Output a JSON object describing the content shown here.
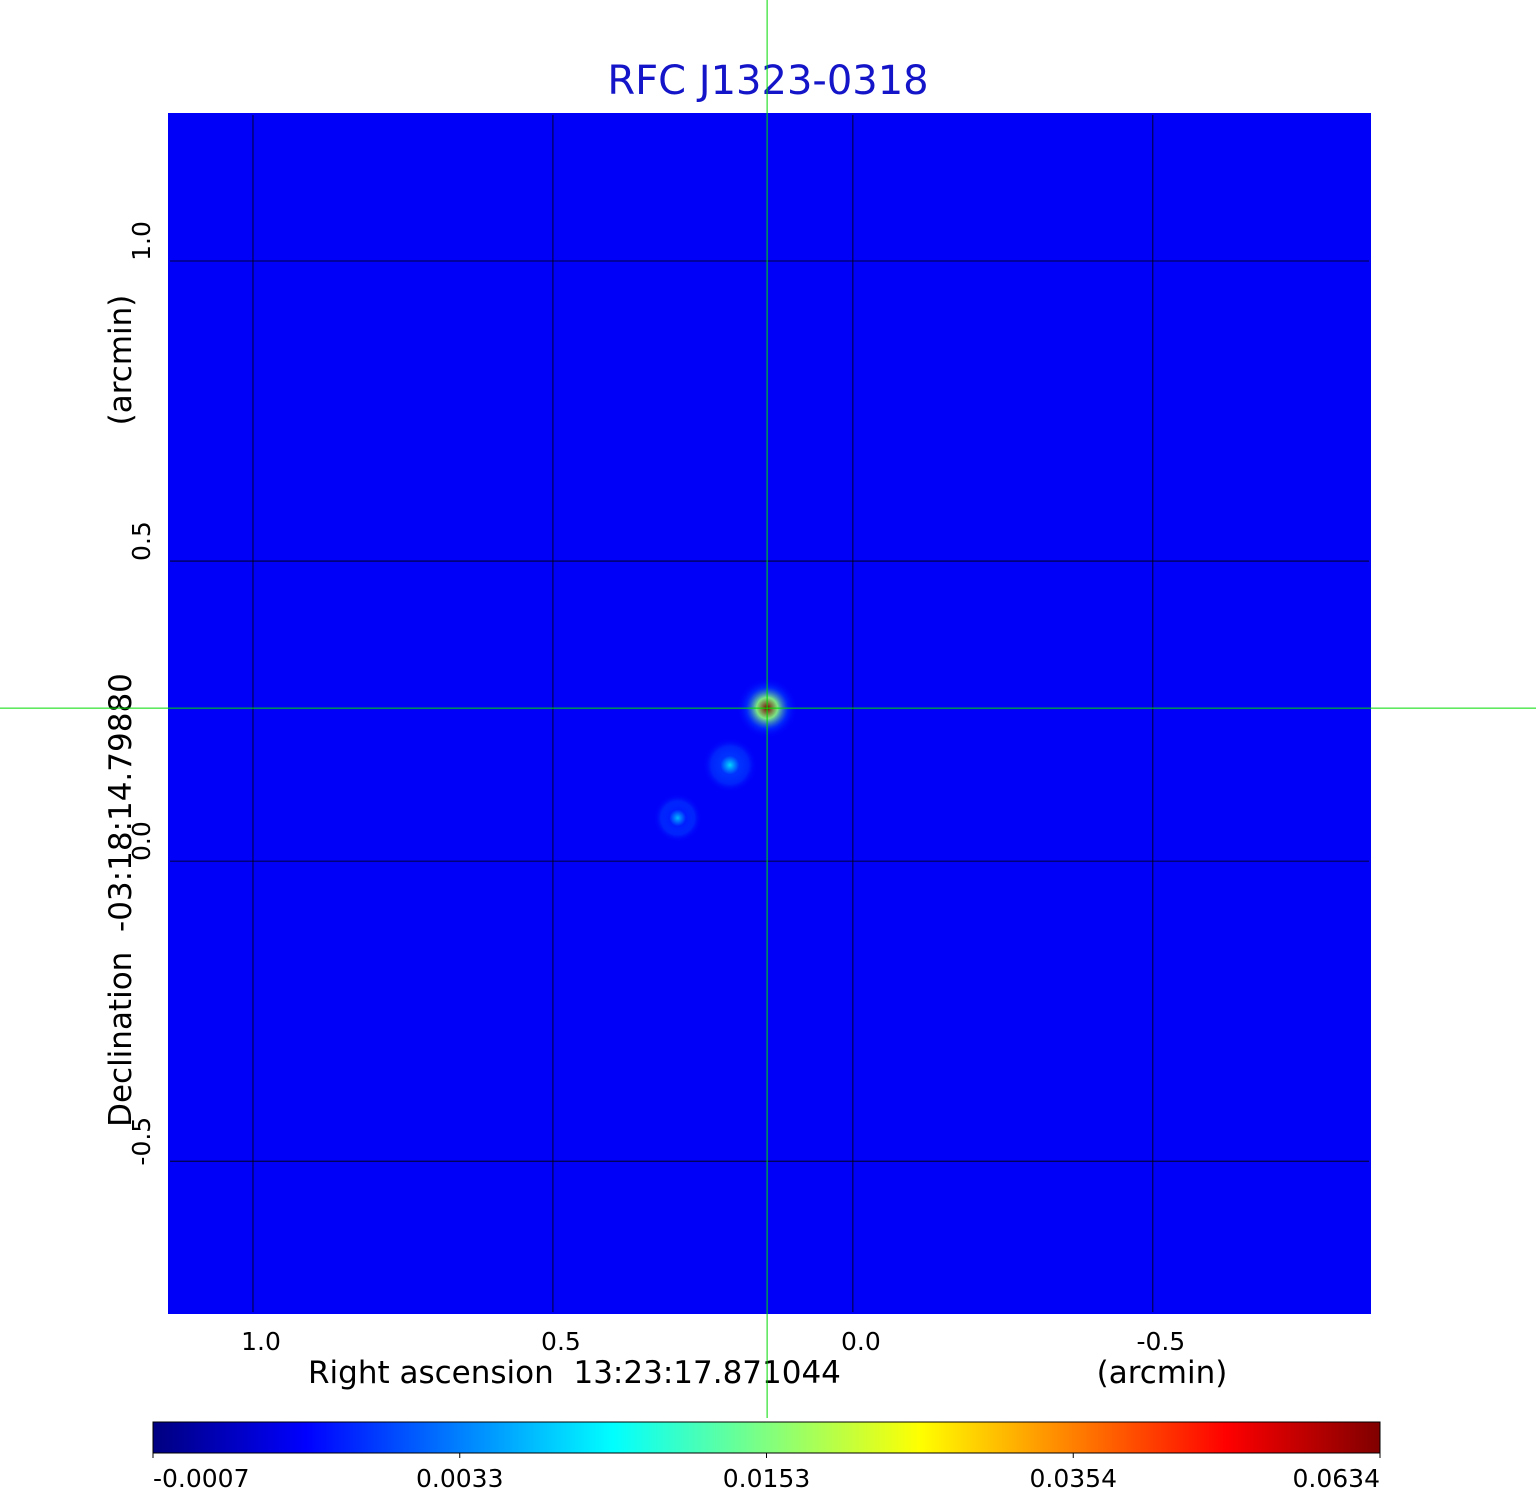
{
  "chart_data": {
    "type": "image",
    "title": "RFC J1323-0318",
    "x_label": "Right ascension  13:23:17.871044",
    "x_unit": "(arcmin)",
    "y_label": "Declination  -03:18:14.79880",
    "y_unit": "(arcmin)",
    "xlim": [
      1.14,
      -0.862
    ],
    "ylim": [
      -0.753,
      1.245
    ],
    "xticks": [
      {
        "value": 1,
        "label": "1.0"
      },
      0.5,
      {
        "value": 0,
        "label": "0.0"
      },
      -0.5
    ],
    "yticks": [
      {
        "value": 1,
        "label": "1.0"
      },
      0.5,
      {
        "value": 0,
        "label": "0.0"
      },
      -0.5
    ],
    "grid": true,
    "grid_color": "#000000",
    "cmap": "jet",
    "background_level": 0.0012,
    "sources": [
      {
        "x": 0.143,
        "y": 0.255,
        "peak": 0.0634,
        "radius": 0.05
      },
      {
        "x": 0.205,
        "y": 0.16,
        "peak": 0.0075,
        "radius": 0.045
      },
      {
        "x": 0.292,
        "y": 0.072,
        "peak": 0.006,
        "radius": 0.04
      }
    ],
    "crosshair": {
      "x": 0.143,
      "y": 0.255,
      "color": "#00dd00"
    },
    "colorbar_ticks": [
      -0.0007,
      0.0033,
      0.0153,
      0.0354,
      0.0634
    ],
    "title_color": "#1414c8"
  }
}
